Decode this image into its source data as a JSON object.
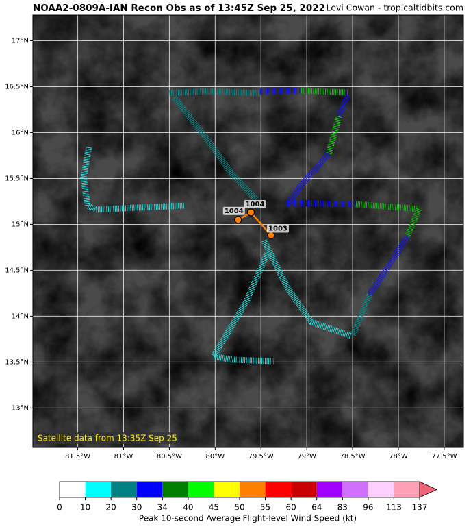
{
  "title": "NOAA2-0809A-IAN Recon Obs as of 13:45Z Sep 25, 2022",
  "credit": "Levi Cowan - tropicaltidbits.com",
  "map": {
    "xlim": [
      -81.99,
      -77.29
    ],
    "ylim": [
      12.57,
      17.28
    ],
    "xticks": [
      {
        "value": -81.5,
        "label": "81.5°W"
      },
      {
        "value": -81,
        "label": "81°W"
      },
      {
        "value": -80.5,
        "label": "80.5°W"
      },
      {
        "value": -80,
        "label": "80°W"
      },
      {
        "value": -79.5,
        "label": "79.5°W"
      },
      {
        "value": -79,
        "label": "79°W"
      },
      {
        "value": -78.5,
        "label": "78.5°W"
      },
      {
        "value": -78,
        "label": "78°W"
      },
      {
        "value": -77.5,
        "label": "77.5°W"
      }
    ],
    "yticks": [
      {
        "value": 13,
        "label": "13°N"
      },
      {
        "value": 13.5,
        "label": "13.5°N"
      },
      {
        "value": 14,
        "label": "14°N"
      },
      {
        "value": 14.5,
        "label": "14.5°N"
      },
      {
        "value": 15,
        "label": "15°N"
      },
      {
        "value": 15.5,
        "label": "15.5°N"
      },
      {
        "value": 16,
        "label": "16°N"
      },
      {
        "value": 16.5,
        "label": "16.5°N"
      },
      {
        "value": 17,
        "label": "17°N"
      }
    ],
    "grid": true,
    "note": "Satellite data from 13:35Z Sep 25",
    "fixes": {
      "lon": [
        -79.75,
        -79.61,
        -79.39
      ],
      "lat": [
        15.05,
        15.13,
        14.88
      ],
      "pressure": [
        1004,
        1004,
        1003
      ],
      "color": "#ff8000"
    }
  },
  "colorbar": {
    "label": "Peak 10-second Average Flight-level Wind Speed (kt)",
    "ticks": [
      0,
      10,
      20,
      30,
      34,
      40,
      45,
      50,
      55,
      60,
      64,
      83,
      96,
      113,
      137
    ],
    "colors": [
      "#ffffff",
      "#00ffff",
      "#008080",
      "#0000ff",
      "#008000",
      "#00ff00",
      "#ffff00",
      "#ff8000",
      "#ff0000",
      "#c80000",
      "#a000ff",
      "#d070ff",
      "#ffd0ff",
      "#ffa0b4"
    ],
    "extend_color": "#f06478"
  }
}
